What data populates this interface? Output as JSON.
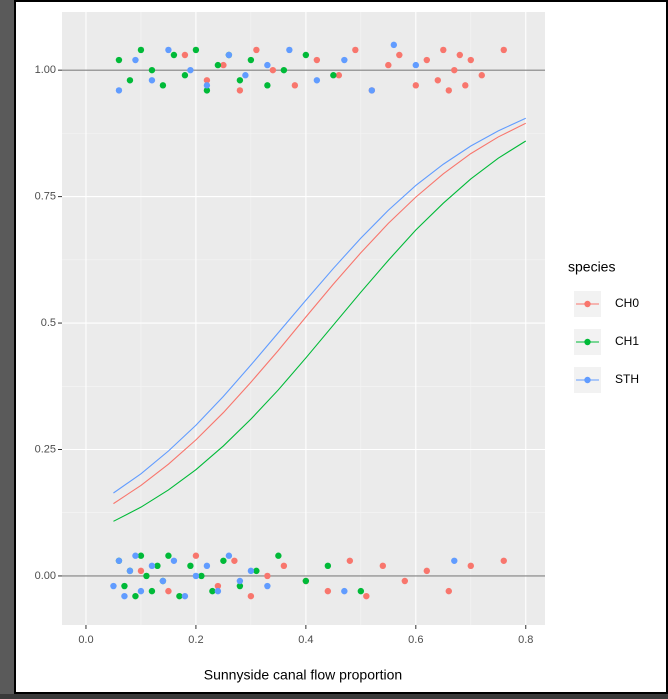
{
  "chart_data": {
    "type": "scatter",
    "xlabel": "Sunnyside canal flow proportion",
    "legend_title": "species",
    "xlim": [
      -0.0436,
      0.835
    ],
    "ylim": [
      -0.097,
      1.115
    ],
    "xticks": [
      {
        "value": 0,
        "label": "0.0"
      },
      0.2,
      0.4,
      0.6,
      0.8
    ],
    "yticks": [
      {
        "value": 0,
        "label": "0.00"
      },
      0.25,
      0.5,
      0.75,
      {
        "value": 1,
        "label": "1.00"
      }
    ],
    "minor_xticks": [
      0.1,
      0.3,
      0.5,
      0.7
    ],
    "minor_yticks": [
      0.125,
      0.375,
      0.625,
      0.875
    ],
    "reference_lines": [
      0,
      1
    ],
    "grid": true,
    "legend": "right",
    "series": [
      {
        "name": "CH0",
        "color": "#F8766D",
        "x": [
          0.18,
          0.22,
          0.25,
          0.28,
          0.31,
          0.34,
          0.38,
          0.42,
          0.46,
          0.49,
          0.52,
          0.55,
          0.57,
          0.6,
          0.62,
          0.64,
          0.65,
          0.66,
          0.67,
          0.68,
          0.69,
          0.7,
          0.72,
          0.76,
          0.1,
          0.15,
          0.2,
          0.24,
          0.27,
          0.3,
          0.33,
          0.36,
          0.4,
          0.44,
          0.48,
          0.51,
          0.54,
          0.58,
          0.62,
          0.66,
          0.7,
          0.76
        ],
        "values": [
          1.03,
          0.98,
          1.01,
          0.96,
          1.04,
          1.0,
          0.97,
          1.02,
          0.99,
          1.04,
          0.96,
          1.01,
          1.03,
          0.97,
          1.02,
          0.98,
          1.04,
          0.96,
          1.0,
          1.03,
          0.97,
          1.02,
          0.99,
          1.04,
          0.01,
          -0.03,
          0.04,
          -0.02,
          0.03,
          -0.04,
          0.0,
          0.02,
          -0.01,
          -0.03,
          0.03,
          -0.04,
          0.02,
          -0.01,
          0.01,
          -0.03,
          0.02,
          0.03
        ],
        "fit_x": [
          0.05,
          0.1,
          0.15,
          0.2,
          0.25,
          0.3,
          0.35,
          0.4,
          0.45,
          0.5,
          0.55,
          0.6,
          0.65,
          0.7,
          0.75,
          0.8
        ],
        "fit_values": [
          0.143,
          0.179,
          0.221,
          0.269,
          0.323,
          0.383,
          0.446,
          0.512,
          0.577,
          0.639,
          0.697,
          0.749,
          0.795,
          0.835,
          0.868,
          0.895
        ]
      },
      {
        "name": "CH1",
        "color": "#00BA38",
        "x": [
          0.06,
          0.08,
          0.1,
          0.12,
          0.14,
          0.16,
          0.18,
          0.2,
          0.22,
          0.24,
          0.26,
          0.28,
          0.3,
          0.33,
          0.36,
          0.4,
          0.45,
          0.06,
          0.07,
          0.08,
          0.09,
          0.1,
          0.11,
          0.12,
          0.13,
          0.14,
          0.15,
          0.17,
          0.19,
          0.21,
          0.23,
          0.25,
          0.28,
          0.31,
          0.35,
          0.4,
          0.44,
          0.5
        ],
        "values": [
          1.02,
          0.98,
          1.04,
          1.0,
          0.97,
          1.03,
          0.99,
          1.04,
          0.96,
          1.01,
          1.03,
          0.98,
          1.02,
          0.97,
          1.0,
          1.03,
          0.99,
          0.03,
          -0.02,
          0.01,
          -0.04,
          0.04,
          0.0,
          -0.03,
          0.02,
          -0.01,
          0.04,
          -0.04,
          0.02,
          0.0,
          -0.03,
          0.03,
          -0.02,
          0.01,
          0.04,
          -0.01,
          0.02,
          -0.03
        ],
        "fit_x": [
          0.05,
          0.1,
          0.15,
          0.2,
          0.25,
          0.3,
          0.35,
          0.4,
          0.45,
          0.5,
          0.55,
          0.6,
          0.65,
          0.7,
          0.75,
          0.8
        ],
        "fit_values": [
          0.108,
          0.136,
          0.17,
          0.21,
          0.257,
          0.31,
          0.368,
          0.431,
          0.496,
          0.561,
          0.624,
          0.684,
          0.737,
          0.785,
          0.826,
          0.86
        ]
      },
      {
        "name": "STH",
        "color": "#619CFF",
        "x": [
          0.06,
          0.09,
          0.12,
          0.15,
          0.19,
          0.22,
          0.26,
          0.29,
          0.33,
          0.37,
          0.42,
          0.47,
          0.52,
          0.56,
          0.6,
          0.05,
          0.06,
          0.07,
          0.08,
          0.09,
          0.1,
          0.12,
          0.14,
          0.16,
          0.18,
          0.2,
          0.22,
          0.24,
          0.26,
          0.28,
          0.3,
          0.33,
          0.47,
          0.67
        ],
        "values": [
          0.96,
          1.02,
          0.98,
          1.04,
          1.0,
          0.97,
          1.03,
          0.99,
          1.01,
          1.04,
          0.98,
          1.02,
          0.96,
          1.05,
          1.01,
          -0.02,
          0.03,
          -0.04,
          0.01,
          0.04,
          -0.03,
          0.02,
          -0.01,
          0.03,
          -0.04,
          0.0,
          0.02,
          -0.03,
          0.04,
          -0.01,
          0.01,
          -0.02,
          -0.03,
          0.03
        ],
        "fit_x": [
          0.05,
          0.1,
          0.15,
          0.2,
          0.25,
          0.3,
          0.35,
          0.4,
          0.45,
          0.5,
          0.55,
          0.6,
          0.65,
          0.7,
          0.75,
          0.8
        ],
        "fit_values": [
          0.164,
          0.202,
          0.247,
          0.298,
          0.355,
          0.417,
          0.481,
          0.545,
          0.608,
          0.668,
          0.723,
          0.772,
          0.814,
          0.85,
          0.88,
          0.905
        ]
      }
    ]
  }
}
